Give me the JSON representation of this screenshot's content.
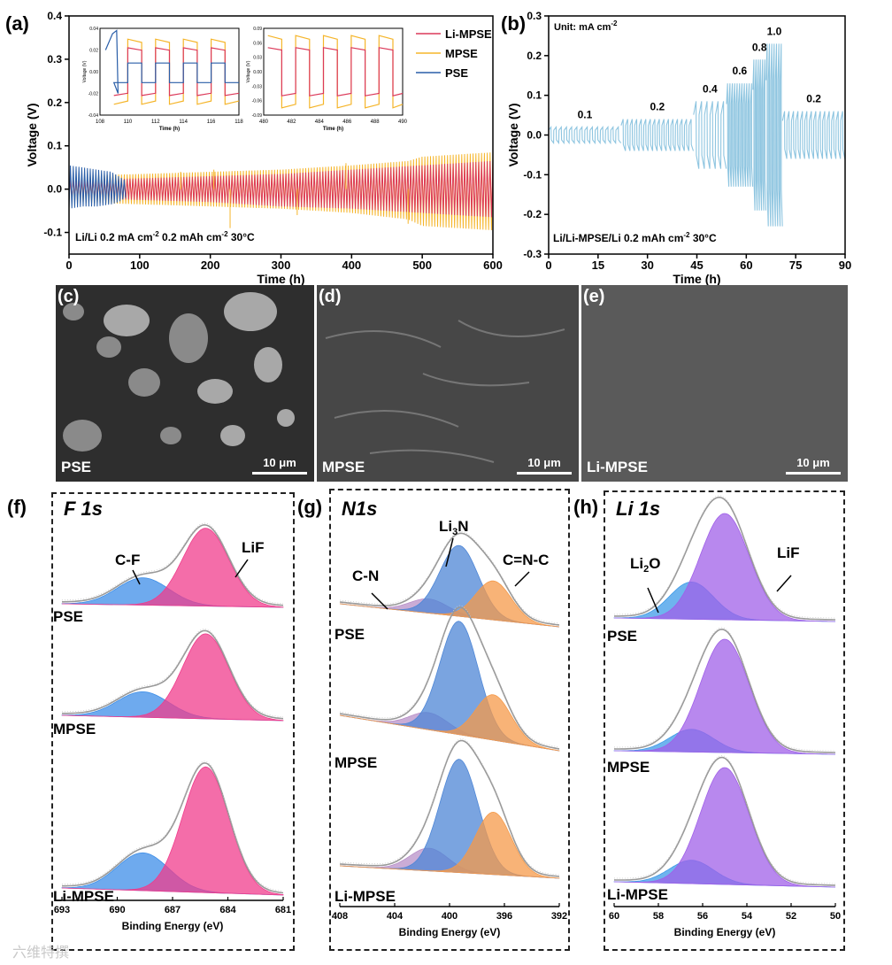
{
  "panel_labels": {
    "a": "(a)",
    "b": "(b)",
    "c": "(c)",
    "d": "(d)",
    "e": "(e)",
    "f": "(f)",
    "g": "(g)",
    "h": "(h)"
  },
  "chart_data": [
    {
      "id": "a",
      "type": "line",
      "title": "",
      "xlabel": "Time (h)",
      "ylabel": "Voltage (V)",
      "xlim": [
        0,
        600
      ],
      "ylim": [
        -0.15,
        0.4
      ],
      "xticks": [
        "0",
        "100",
        "200",
        "300",
        "400",
        "500",
        "600"
      ],
      "yticks": [
        "-0.1",
        "0.0",
        "0.1",
        "0.2",
        "0.3",
        "0.4"
      ],
      "legend": [
        "Li-MPSE",
        "MPSE",
        "PSE"
      ],
      "annotation": "Li/Li   0.2 mA cm",
      "annotation2": "0.2 mAh cm",
      "temp": "30°C",
      "series": [
        {
          "name": "MPSE",
          "color": "#f5b52a",
          "envelope_x": [
            0,
            100,
            200,
            300,
            400,
            480,
            500,
            600
          ],
          "upper": [
            0.03,
            0.035,
            0.04,
            0.045,
            0.055,
            0.065,
            0.075,
            0.085
          ],
          "lower": [
            -0.03,
            -0.035,
            -0.04,
            -0.045,
            -0.055,
            -0.07,
            -0.085,
            -0.095
          ]
        },
        {
          "name": "Li-MPSE",
          "color": "#dc3a5a",
          "envelope_x": [
            0,
            100,
            200,
            300,
            400,
            500,
            600
          ],
          "upper": [
            0.02,
            0.025,
            0.03,
            0.035,
            0.045,
            0.055,
            0.065
          ],
          "lower": [
            -0.02,
            -0.025,
            -0.03,
            -0.04,
            -0.045,
            -0.055,
            -0.065
          ]
        },
        {
          "name": "PSE",
          "color": "#2a5ea8",
          "envelope_x": [
            0,
            20,
            40,
            60,
            70,
            80
          ],
          "upper": [
            0.055,
            0.05,
            0.045,
            0.04,
            0.03,
            0.02
          ],
          "lower": [
            -0.045,
            -0.04,
            -0.04,
            -0.035,
            -0.03,
            -0.02
          ]
        }
      ],
      "insets": [
        {
          "id": "inset1",
          "xlim": [
            108,
            118
          ],
          "ylim": [
            -0.04,
            0.04
          ],
          "xticks": [
            "108",
            "110",
            "112",
            "114",
            "116",
            "118"
          ],
          "yticks": [
            "-0.04",
            "-0.02",
            "0.00",
            "0.02",
            "0.04"
          ],
          "xlabel": "Time (h)",
          "ylabel": "Voltage (V)"
        },
        {
          "id": "inset2",
          "xlim": [
            480,
            490
          ],
          "ylim": [
            -0.09,
            0.09
          ],
          "xticks": [
            "480",
            "482",
            "484",
            "486",
            "488",
            "490"
          ],
          "yticks": [
            "-0.09",
            "-0.06",
            "-0.03",
            "0.00",
            "0.03",
            "0.06",
            "0.09"
          ],
          "xlabel": "Time (h)",
          "ylabel": "Voltage (V)"
        }
      ]
    },
    {
      "id": "b",
      "type": "line",
      "title": "",
      "xlabel": "Time (h)",
      "ylabel": "Voltage (V)",
      "xlim": [
        0,
        90
      ],
      "ylim": [
        -0.3,
        0.3
      ],
      "xticks": [
        "0",
        "15",
        "30",
        "45",
        "60",
        "75",
        "90"
      ],
      "yticks": [
        "-0.3",
        "-0.2",
        "-0.1",
        "0.0",
        "0.1",
        "0.2",
        "0.3"
      ],
      "unit_note": "Unit: mA cm",
      "annotation": "Li/Li-MPSE/Li   0.2 mAh cm",
      "temp": "30°C",
      "color": "#8ec5e0",
      "rate_steps": [
        {
          "rate": "0.1",
          "x_start": 0,
          "x_end": 22,
          "amp": 0.02
        },
        {
          "rate": "0.2",
          "x_start": 22,
          "x_end": 44,
          "amp": 0.04
        },
        {
          "rate": "0.4",
          "x_start": 44,
          "x_end": 54,
          "amp": 0.085
        },
        {
          "rate": "0.6",
          "x_start": 54,
          "x_end": 62,
          "amp": 0.13
        },
        {
          "rate": "0.8",
          "x_start": 62,
          "x_end": 66,
          "amp": 0.19
        },
        {
          "rate": "1.0",
          "x_start": 66,
          "x_end": 71,
          "amp": 0.23
        },
        {
          "rate": "0.2",
          "x_start": 71,
          "x_end": 90,
          "amp": 0.06
        }
      ]
    },
    {
      "id": "f",
      "type": "area",
      "title": "F 1s",
      "xlabel": "Binding Energy (eV)",
      "xlim": [
        693,
        681
      ],
      "xticks": [
        "693",
        "690",
        "687",
        "684",
        "681"
      ],
      "samples": [
        "PSE",
        "MPSE",
        "Li-MPSE"
      ],
      "peaks": [
        {
          "name": "C-F",
          "center": 688.6,
          "color": "#3d8ee8",
          "heights": [
            0.35,
            0.3,
            0.3
          ],
          "width": 1.4
        },
        {
          "name": "LiF",
          "center": 685.2,
          "color": "#f03c8c",
          "heights": [
            1.0,
            1.0,
            1.0
          ],
          "width": 1.25
        }
      ],
      "annotations": [
        "C-F",
        "LiF"
      ]
    },
    {
      "id": "g",
      "type": "area",
      "title": "N1s",
      "xlabel": "Binding Energy (eV)",
      "xlim": [
        408,
        392
      ],
      "xticks": [
        "408",
        "404",
        "400",
        "396",
        "392"
      ],
      "samples": [
        "PSE",
        "MPSE",
        "Li-MPSE"
      ],
      "peaks": [
        {
          "name": "C-N",
          "center": 401.5,
          "color": "#b890c8",
          "heights": [
            0.2,
            0.15,
            0.2
          ],
          "width": 1.4
        },
        {
          "name": "Li3N",
          "center": 399.3,
          "color": "#4e86d6",
          "heights": [
            1.0,
            1.0,
            1.0
          ],
          "width": 1.4
        },
        {
          "name": "C=N-C",
          "center": 396.8,
          "color": "#f59a4a",
          "heights": [
            0.55,
            0.4,
            0.55
          ],
          "width": 1.3
        }
      ],
      "annotations": [
        "C-N",
        "Li",
        "3",
        "N",
        "C=N-C"
      ]
    },
    {
      "id": "h",
      "type": "area",
      "title": "Li 1s",
      "xlabel": "Binding Energy (eV)",
      "xlim": [
        60,
        50
      ],
      "xticks": [
        "60",
        "58",
        "56",
        "54",
        "52",
        "50"
      ],
      "samples": [
        "PSE",
        "MPSE",
        "Li-MPSE"
      ],
      "peaks": [
        {
          "name": "Li2O",
          "center": 56.5,
          "color": "#3d9be8",
          "heights": [
            0.35,
            0.2,
            0.2
          ],
          "width": 1.0
        },
        {
          "name": "LiF",
          "center": 55.0,
          "color": "#a060e8",
          "heights": [
            1.0,
            1.0,
            1.0
          ],
          "width": 1.1
        }
      ],
      "annotations": [
        "Li",
        "2",
        "O",
        "LiF"
      ]
    }
  ],
  "sem": [
    {
      "id": "c",
      "sample": "PSE",
      "scale": "10 μm"
    },
    {
      "id": "d",
      "sample": "MPSE",
      "scale": "10 μm"
    },
    {
      "id": "e",
      "sample": "Li-MPSE",
      "scale": "10 μm"
    }
  ],
  "superscript": "-2",
  "watermark": "六维特撰"
}
